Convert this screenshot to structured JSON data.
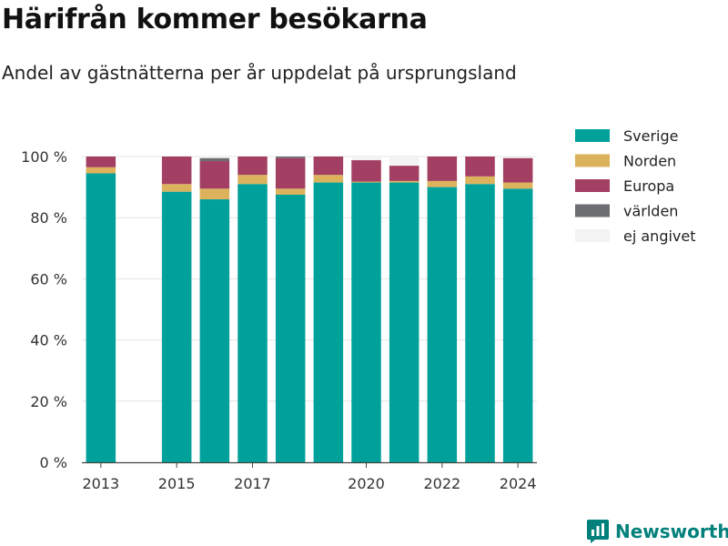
{
  "page": {
    "title": "Härifrån kommer besökarna",
    "subtitle": "Andel av gästnätterna per år uppdelat på ursprungsland",
    "brand": "Newsworthy"
  },
  "chart_data": {
    "type": "bar",
    "stacked": true,
    "categories": [
      2013,
      2015,
      2016,
      2017,
      2018,
      2019,
      2020,
      2021,
      2022,
      2023,
      2024
    ],
    "x_ticks": [
      "2013",
      "2015",
      "2017",
      "2020",
      "2022",
      "2024"
    ],
    "y_ticks": [
      0,
      20,
      40,
      60,
      80,
      100
    ],
    "y_tick_suffix": " %",
    "ylim": [
      0,
      100
    ],
    "grid": true,
    "legend_position": "right",
    "series": [
      {
        "name": "Sverige",
        "color": "#00a19a",
        "values": [
          94.5,
          88.5,
          86.0,
          91.0,
          87.5,
          91.5,
          91.5,
          91.5,
          90.0,
          91.0,
          89.5
        ]
      },
      {
        "name": "Norden",
        "color": "#dcb25c",
        "values": [
          2.0,
          2.5,
          3.5,
          3.0,
          2.0,
          2.5,
          0.3,
          0.5,
          2.0,
          2.5,
          2.0
        ]
      },
      {
        "name": "Europa",
        "color": "#a33f63",
        "values": [
          3.5,
          9.0,
          9.0,
          6.0,
          10.0,
          6.0,
          7.0,
          5.0,
          8.0,
          6.5,
          8.0
        ]
      },
      {
        "name": "världen",
        "color": "#6d6e72",
        "values": [
          0.0,
          0.0,
          1.0,
          0.0,
          0.5,
          0.0,
          0.0,
          0.0,
          0.0,
          0.0,
          0.0
        ]
      },
      {
        "name": "ej angivet",
        "color": "#f3f3f4",
        "values": [
          0.0,
          0.0,
          0.5,
          0.0,
          0.0,
          0.0,
          1.2,
          3.0,
          0.0,
          0.0,
          0.5
        ]
      }
    ]
  }
}
